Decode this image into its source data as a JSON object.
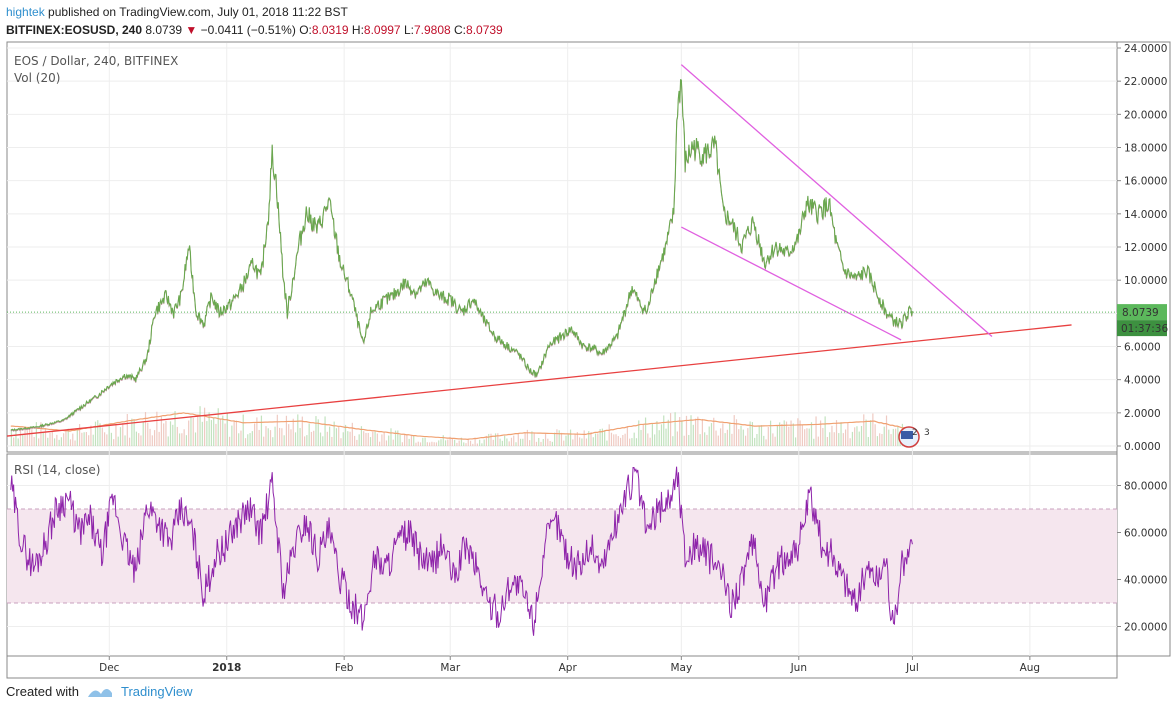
{
  "header": {
    "user": "hightek",
    "published_text": "published on TradingView.com, July 01, 2018 11:22 BST",
    "symbol": "BITFINEX:EOSUSD, 240",
    "last": "8.0739",
    "change": "−0.0411 (−0.51%)",
    "o_label": "O:",
    "o_value": "8.0319",
    "h_label": "H:",
    "h_value": "8.0997",
    "l_label": "L:",
    "l_value": "7.9808",
    "c_label": "C:",
    "c_value": "8.0739"
  },
  "footer": {
    "created_with": "Created with",
    "brand": "TradingView"
  },
  "chart_data": [
    {
      "type": "line",
      "pane": "price",
      "title": "EOS / Dollar, 240, BITFINEX",
      "subtitle": "Vol (20)",
      "x_ticks": [
        "Dec",
        "2018",
        "Feb",
        "Mar",
        "Apr",
        "May",
        "Jun",
        "Jul",
        "Aug"
      ],
      "y_ticks": [
        "0.0000",
        "2.0000",
        "4.0000",
        "6.0000",
        "8.0000",
        "10.0000",
        "12.0000",
        "14.0000",
        "16.0000",
        "18.0000",
        "20.0000",
        "22.0000",
        "24.0000"
      ],
      "ylim": [
        0,
        24
      ],
      "xlim": [
        "2017-11-04",
        "2018-08-24"
      ],
      "series": [
        {
          "color": "#6aa84f",
          "points": [
            [
              "2017-11-05",
              0.9
            ],
            [
              "2017-11-12",
              1.1
            ],
            [
              "2017-11-19",
              1.5
            ],
            [
              "2017-11-23",
              2.2
            ],
            [
              "2017-11-28",
              3.0
            ],
            [
              "2017-12-01",
              3.6
            ],
            [
              "2017-12-05",
              4.2
            ],
            [
              "2017-12-08",
              4.0
            ],
            [
              "2017-12-11",
              5.3
            ],
            [
              "2017-12-13",
              8.0
            ],
            [
              "2017-12-16",
              9.0
            ],
            [
              "2017-12-18",
              8.0
            ],
            [
              "2017-12-20",
              9.0
            ],
            [
              "2017-12-22",
              12.0
            ],
            [
              "2017-12-24",
              8.0
            ],
            [
              "2017-12-26",
              7.3
            ],
            [
              "2017-12-28",
              9.0
            ],
            [
              "2017-12-30",
              8.0
            ],
            [
              "2018-01-02",
              8.5
            ],
            [
              "2018-01-05",
              9.5
            ],
            [
              "2018-01-08",
              11.0
            ],
            [
              "2018-01-10",
              10.0
            ],
            [
              "2018-01-12",
              14.0
            ],
            [
              "2018-01-13",
              17.5
            ],
            [
              "2018-01-14",
              16.0
            ],
            [
              "2018-01-16",
              10.0
            ],
            [
              "2018-01-17",
              8.0
            ],
            [
              "2018-01-20",
              12.0
            ],
            [
              "2018-01-22",
              14.0
            ],
            [
              "2018-01-25",
              13.0
            ],
            [
              "2018-01-28",
              14.7
            ],
            [
              "2018-01-31",
              11.0
            ],
            [
              "2018-02-03",
              9.0
            ],
            [
              "2018-02-06",
              6.0
            ],
            [
              "2018-02-08",
              8.0
            ],
            [
              "2018-02-10",
              8.5
            ],
            [
              "2018-02-14",
              9.0
            ],
            [
              "2018-02-17",
              9.8
            ],
            [
              "2018-02-20",
              9.2
            ],
            [
              "2018-02-23",
              9.8
            ],
            [
              "2018-02-26",
              9.0
            ],
            [
              "2018-03-01",
              8.8
            ],
            [
              "2018-03-04",
              8.0
            ],
            [
              "2018-03-07",
              8.8
            ],
            [
              "2018-03-10",
              7.5
            ],
            [
              "2018-03-13",
              6.5
            ],
            [
              "2018-03-16",
              6.0
            ],
            [
              "2018-03-19",
              5.5
            ],
            [
              "2018-03-22",
              4.5
            ],
            [
              "2018-03-24",
              4.2
            ],
            [
              "2018-03-27",
              6.0
            ],
            [
              "2018-03-30",
              6.5
            ],
            [
              "2018-04-02",
              7.0
            ],
            [
              "2018-04-05",
              6.0
            ],
            [
              "2018-04-08",
              5.8
            ],
            [
              "2018-04-10",
              5.5
            ],
            [
              "2018-04-12",
              6.0
            ],
            [
              "2018-04-14",
              6.5
            ],
            [
              "2018-04-16",
              8.0
            ],
            [
              "2018-04-18",
              9.5
            ],
            [
              "2018-04-20",
              8.5
            ],
            [
              "2018-04-22",
              8.0
            ],
            [
              "2018-04-24",
              10.0
            ],
            [
              "2018-04-27",
              12.0
            ],
            [
              "2018-04-29",
              14.0
            ],
            [
              "2018-04-30",
              20.5
            ],
            [
              "2018-05-01",
              22.0
            ],
            [
              "2018-05-02",
              17.0
            ],
            [
              "2018-05-04",
              18.0
            ],
            [
              "2018-05-07",
              17.5
            ],
            [
              "2018-05-10",
              18.0
            ],
            [
              "2018-05-12",
              14.0
            ],
            [
              "2018-05-14",
              13.5
            ],
            [
              "2018-05-17",
              12.0
            ],
            [
              "2018-05-20",
              13.5
            ],
            [
              "2018-05-23",
              11.0
            ],
            [
              "2018-05-26",
              12.0
            ],
            [
              "2018-05-29",
              11.5
            ],
            [
              "2018-06-01",
              12.5
            ],
            [
              "2018-06-03",
              14.5
            ],
            [
              "2018-06-06",
              14.0
            ],
            [
              "2018-06-09",
              14.5
            ],
            [
              "2018-06-11",
              12.0
            ],
            [
              "2018-06-13",
              10.5
            ],
            [
              "2018-06-16",
              10.0
            ],
            [
              "2018-06-19",
              10.5
            ],
            [
              "2018-06-22",
              9.0
            ],
            [
              "2018-06-24",
              8.0
            ],
            [
              "2018-06-26",
              7.5
            ],
            [
              "2018-06-28",
              7.3
            ],
            [
              "2018-06-30",
              8.0
            ],
            [
              "2018-07-01",
              8.07
            ]
          ]
        }
      ],
      "volume": {
        "color": "#e8b4a8",
        "points": [
          [
            "2017-11-05",
            1.2
          ],
          [
            "2017-11-20",
            0.9
          ],
          [
            "2017-12-05",
            1.5
          ],
          [
            "2017-12-20",
            2.0
          ],
          [
            "2018-01-05",
            1.4
          ],
          [
            "2018-01-20",
            1.5
          ],
          [
            "2018-02-05",
            1.0
          ],
          [
            "2018-02-20",
            0.6
          ],
          [
            "2018-03-05",
            0.4
          ],
          [
            "2018-03-20",
            0.8
          ],
          [
            "2018-04-05",
            0.7
          ],
          [
            "2018-04-20",
            1.3
          ],
          [
            "2018-05-05",
            1.6
          ],
          [
            "2018-05-20",
            1.2
          ],
          [
            "2018-06-05",
            1.3
          ],
          [
            "2018-06-20",
            1.5
          ],
          [
            "2018-06-30",
            1.0
          ]
        ],
        "ma_color": "#f0a070"
      },
      "trend_lines": [
        {
          "color": "#e84040",
          "from": [
            "2017-11-04",
            0.6
          ],
          "to": [
            "2018-08-12",
            7.3
          ]
        },
        {
          "color": "#e060e0",
          "from": [
            "2018-05-01",
            23.0
          ],
          "to": [
            "2018-07-22",
            6.6
          ]
        },
        {
          "color": "#e060e0",
          "from": [
            "2018-05-01",
            13.2
          ],
          "to": [
            "2018-06-28",
            6.4
          ]
        }
      ],
      "last_price": {
        "value": 8.0739,
        "label": "8.0739",
        "countdown": "01:37:36",
        "color": "#5cb85c"
      }
    },
    {
      "type": "line",
      "pane": "rsi",
      "title": "RSI (14, close)",
      "y_ticks": [
        "20.0000",
        "40.0000",
        "60.0000",
        "80.0000"
      ],
      "ylim": [
        10,
        90
      ],
      "band": [
        30,
        70
      ],
      "xlim": [
        "2017-11-04",
        "2018-08-24"
      ],
      "series": [
        {
          "color": "#8e24aa",
          "points": [
            [
              "2017-11-05",
              80
            ],
            [
              "2017-11-08",
              55
            ],
            [
              "2017-11-11",
              45
            ],
            [
              "2017-11-14",
              55
            ],
            [
              "2017-11-17",
              70
            ],
            [
              "2017-11-20",
              75
            ],
            [
              "2017-11-23",
              60
            ],
            [
              "2017-11-26",
              65
            ],
            [
              "2017-11-29",
              50
            ],
            [
              "2017-12-02",
              75
            ],
            [
              "2017-12-05",
              55
            ],
            [
              "2017-12-08",
              42
            ],
            [
              "2017-12-11",
              72
            ],
            [
              "2017-12-14",
              65
            ],
            [
              "2017-12-17",
              55
            ],
            [
              "2017-12-20",
              70
            ],
            [
              "2017-12-23",
              60
            ],
            [
              "2017-12-26",
              33
            ],
            [
              "2017-12-29",
              50
            ],
            [
              "2018-01-01",
              55
            ],
            [
              "2018-01-04",
              65
            ],
            [
              "2018-01-07",
              70
            ],
            [
              "2018-01-10",
              60
            ],
            [
              "2018-01-13",
              80
            ],
            [
              "2018-01-16",
              35
            ],
            [
              "2018-01-19",
              55
            ],
            [
              "2018-01-22",
              65
            ],
            [
              "2018-01-25",
              50
            ],
            [
              "2018-01-28",
              60
            ],
            [
              "2018-01-31",
              40
            ],
            [
              "2018-02-03",
              30
            ],
            [
              "2018-02-06",
              22
            ],
            [
              "2018-02-09",
              50
            ],
            [
              "2018-02-12",
              45
            ],
            [
              "2018-02-15",
              55
            ],
            [
              "2018-02-18",
              60
            ],
            [
              "2018-02-21",
              50
            ],
            [
              "2018-02-24",
              45
            ],
            [
              "2018-02-27",
              55
            ],
            [
              "2018-03-02",
              40
            ],
            [
              "2018-03-05",
              55
            ],
            [
              "2018-03-08",
              45
            ],
            [
              "2018-03-11",
              30
            ],
            [
              "2018-03-14",
              25
            ],
            [
              "2018-03-17",
              40
            ],
            [
              "2018-03-20",
              35
            ],
            [
              "2018-03-23",
              22
            ],
            [
              "2018-03-26",
              55
            ],
            [
              "2018-03-29",
              65
            ],
            [
              "2018-04-01",
              50
            ],
            [
              "2018-04-04",
              45
            ],
            [
              "2018-04-07",
              55
            ],
            [
              "2018-04-10",
              45
            ],
            [
              "2018-04-13",
              60
            ],
            [
              "2018-04-16",
              75
            ],
            [
              "2018-04-19",
              85
            ],
            [
              "2018-04-22",
              60
            ],
            [
              "2018-04-25",
              70
            ],
            [
              "2018-04-28",
              75
            ],
            [
              "2018-04-30",
              85
            ],
            [
              "2018-05-02",
              50
            ],
            [
              "2018-05-05",
              55
            ],
            [
              "2018-05-08",
              50
            ],
            [
              "2018-05-11",
              45
            ],
            [
              "2018-05-14",
              30
            ],
            [
              "2018-05-17",
              40
            ],
            [
              "2018-05-20",
              55
            ],
            [
              "2018-05-23",
              30
            ],
            [
              "2018-05-26",
              45
            ],
            [
              "2018-05-29",
              50
            ],
            [
              "2018-06-01",
              55
            ],
            [
              "2018-06-04",
              75
            ],
            [
              "2018-06-07",
              55
            ],
            [
              "2018-06-10",
              50
            ],
            [
              "2018-06-13",
              40
            ],
            [
              "2018-06-16",
              30
            ],
            [
              "2018-06-19",
              45
            ],
            [
              "2018-06-22",
              40
            ],
            [
              "2018-06-24",
              50
            ],
            [
              "2018-06-26",
              16
            ],
            [
              "2018-06-28",
              45
            ],
            [
              "2018-06-30",
              50
            ],
            [
              "2018-07-01",
              55
            ]
          ]
        }
      ]
    }
  ]
}
